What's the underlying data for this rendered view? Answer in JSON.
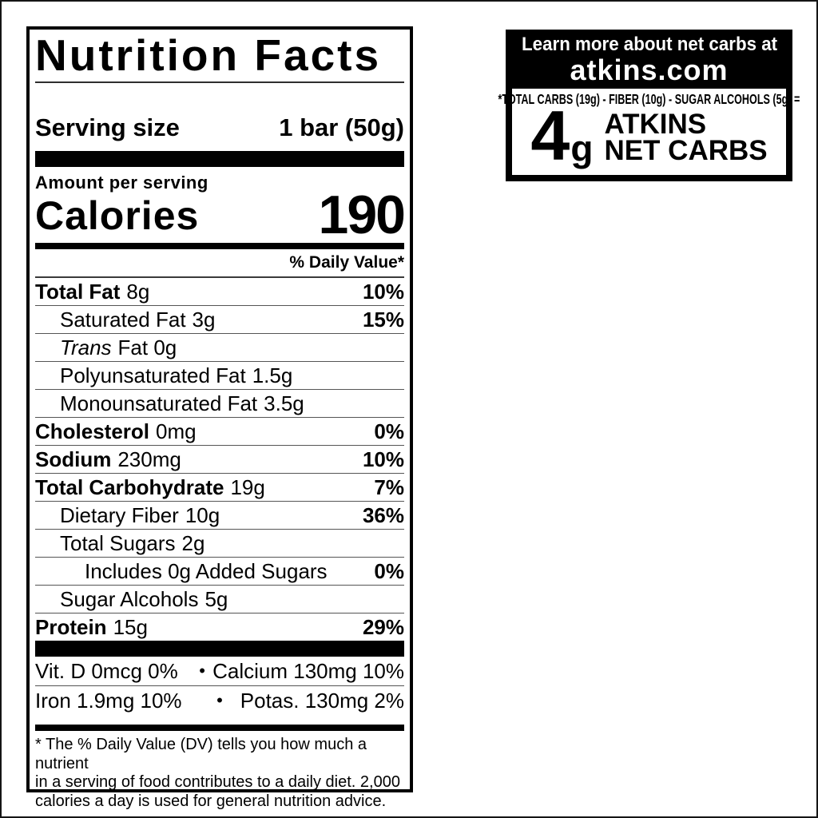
{
  "colors": {
    "ink": "#000000",
    "paper": "#ffffff"
  },
  "nutrition_label": {
    "title": "Nutrition Facts",
    "serving_size_label": "Serving size",
    "serving_size_value": "1 bar (50g)",
    "amount_per_serving": "Amount per serving",
    "calories_label": "Calories",
    "calories_value": "190",
    "daily_value_header": "% Daily Value*",
    "rows": [
      {
        "name": "Total Fat",
        "amount": "8g",
        "dv": "10%"
      },
      {
        "name": "Saturated Fat",
        "amount": "3g",
        "dv": "15%"
      },
      {
        "name": "Trans",
        "amount": "Fat 0g",
        "dv": ""
      },
      {
        "name": "Polyunsaturated Fat",
        "amount": "1.5g",
        "dv": ""
      },
      {
        "name": "Monounsaturated Fat",
        "amount": "3.5g",
        "dv": ""
      },
      {
        "name": "Cholesterol",
        "amount": "0mg",
        "dv": "0%"
      },
      {
        "name": "Sodium",
        "amount": "230mg",
        "dv": "10%"
      },
      {
        "name": "Total Carbohydrate",
        "amount": "19g",
        "dv": "7%"
      },
      {
        "name": "Dietary Fiber",
        "amount": "10g",
        "dv": "36%"
      },
      {
        "name": "Total Sugars",
        "amount": "2g",
        "dv": ""
      },
      {
        "name": "Includes 0g Added Sugars",
        "amount": "",
        "dv": "0%"
      },
      {
        "name": "Sugar Alcohols",
        "amount": "5g",
        "dv": ""
      },
      {
        "name": "Protein",
        "amount": "15g",
        "dv": "29%"
      }
    ],
    "micronutrients": [
      {
        "left": "Vit. D 0mcg 0%",
        "separator": "•",
        "right": "Calcium 130mg 10%"
      },
      {
        "left": "Iron 1.9mg 10%",
        "separator": "•",
        "right": "Potas. 130mg 2%"
      }
    ],
    "footnote_lines": [
      "* The % Daily Value (DV) tells you how much a nutrient",
      "in a serving of food contributes to a daily diet. 2,000",
      "calories a day is used for general nutrition advice."
    ]
  },
  "net_carbs_badge": {
    "header_line1": "Learn more about net carbs at",
    "header_line2": "atkins.com",
    "formula": "*TOTAL CARBS (19g) - FIBER (10g) - SUGAR ALCOHOLS (5g) =",
    "value": "4",
    "unit": "g",
    "brand_line1": "ATKINS",
    "brand_line2": "NET CARBS"
  }
}
